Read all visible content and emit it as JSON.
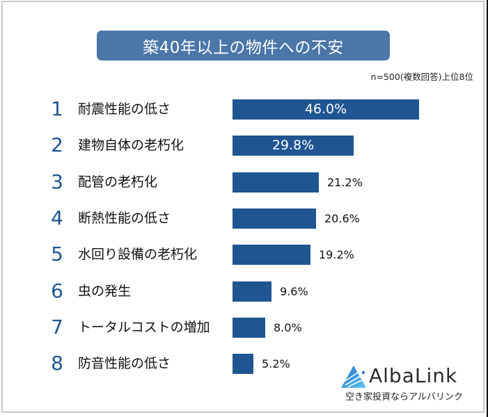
{
  "title": "築40年以上の物件への不安",
  "note": "n=500(複数回答)上位8位",
  "bar_color": "#1f5591",
  "title_bg_color": "#4a76a8",
  "rows": [
    {
      "rank": "1",
      "label": "耐震性能の低さ",
      "value_text": "46.0%"
    },
    {
      "rank": "2",
      "label": "建物自体の老朽化",
      "value_text": "29.8%"
    },
    {
      "rank": "3",
      "label": "配管の老朽化",
      "value_text": "21.2%"
    },
    {
      "rank": "4",
      "label": "断熱性能の低さ",
      "value_text": "20.6%"
    },
    {
      "rank": "5",
      "label": "水回り設備の老朽化",
      "value_text": "19.2%"
    },
    {
      "rank": "6",
      "label": "虫の発生",
      "value_text": "9.6%"
    },
    {
      "rank": "7",
      "label": "トータルコストの増加",
      "value_text": "8.0%"
    },
    {
      "rank": "8",
      "label": "防音性能の低さ",
      "value_text": "5.2%"
    }
  ],
  "logo": {
    "name": "AlbaLink",
    "tagline": "空き家投資ならアルバリンク",
    "icon": "albalink-triangle-logo-icon"
  },
  "chart_data": {
    "type": "bar",
    "orientation": "horizontal",
    "title": "築40年以上の物件への不安",
    "subtitle": "n=500(複数回答)上位8位",
    "categories": [
      "耐震性能の低さ",
      "建物自体の老朽化",
      "配管の老朽化",
      "断熱性能の低さ",
      "水回り設備の老朽化",
      "虫の発生",
      "トータルコストの増加",
      "防音性能の低さ"
    ],
    "values": [
      46.0,
      29.8,
      21.2,
      20.6,
      19.2,
      9.6,
      8.0,
      5.2
    ],
    "unit": "%",
    "xlabel": "",
    "ylabel": "",
    "grid": false,
    "legend": "none"
  }
}
